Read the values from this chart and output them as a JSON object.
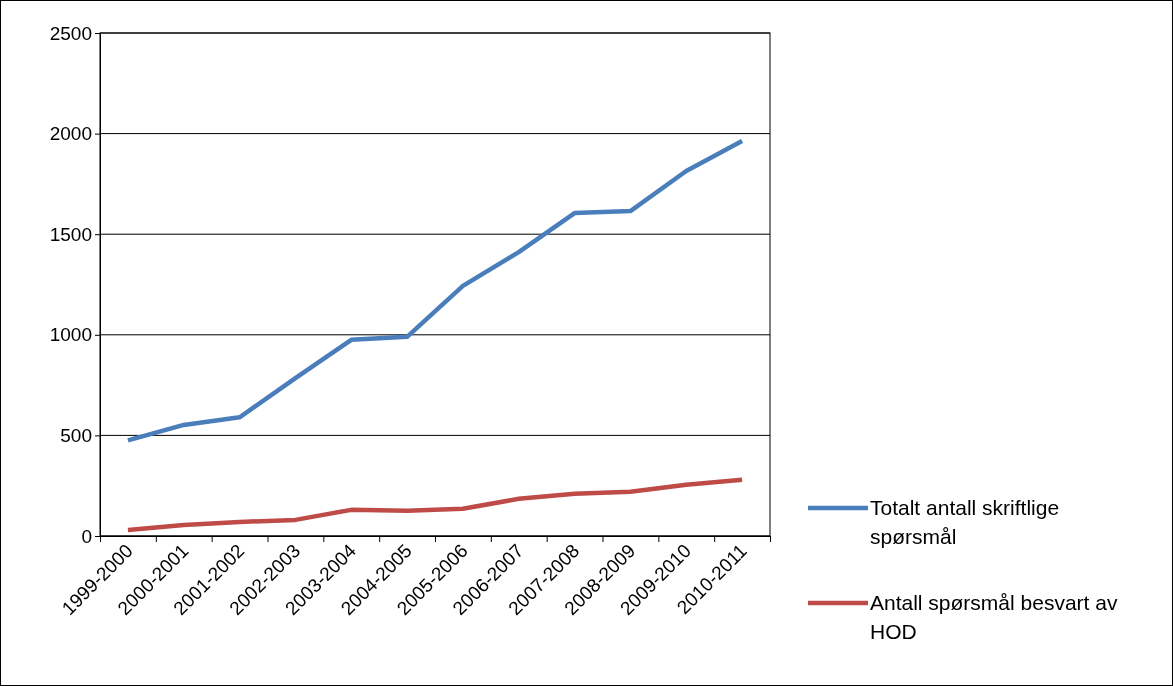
{
  "chart_data": {
    "type": "line",
    "categories": [
      "1999-2000",
      "2000-2001",
      "2001-2002",
      "2002-2003",
      "2003-2004",
      "2004-2005",
      "2005-2006",
      "2006-2007",
      "2007-2008",
      "2008-2009",
      "2009-2010",
      "2010-2011"
    ],
    "series": [
      {
        "name": "Totalt antall skriftlige spørsmål",
        "color": "#4a7ebb",
        "values": [
          475,
          552,
          590,
          785,
          975,
          990,
          1243,
          1411,
          1605,
          1615,
          1814,
          1963
        ]
      },
      {
        "name": "Antall spørsmål besvart av HOD",
        "color": "#be4b48",
        "values": [
          30,
          55,
          70,
          80,
          130,
          125,
          135,
          185,
          210,
          220,
          255,
          280
        ]
      }
    ],
    "ylim": [
      0,
      2500
    ],
    "yticks": [
      0,
      500,
      1000,
      1500,
      2000,
      2500
    ],
    "grid": "y",
    "legend": "right",
    "marker": "none",
    "line_style": "solid"
  }
}
